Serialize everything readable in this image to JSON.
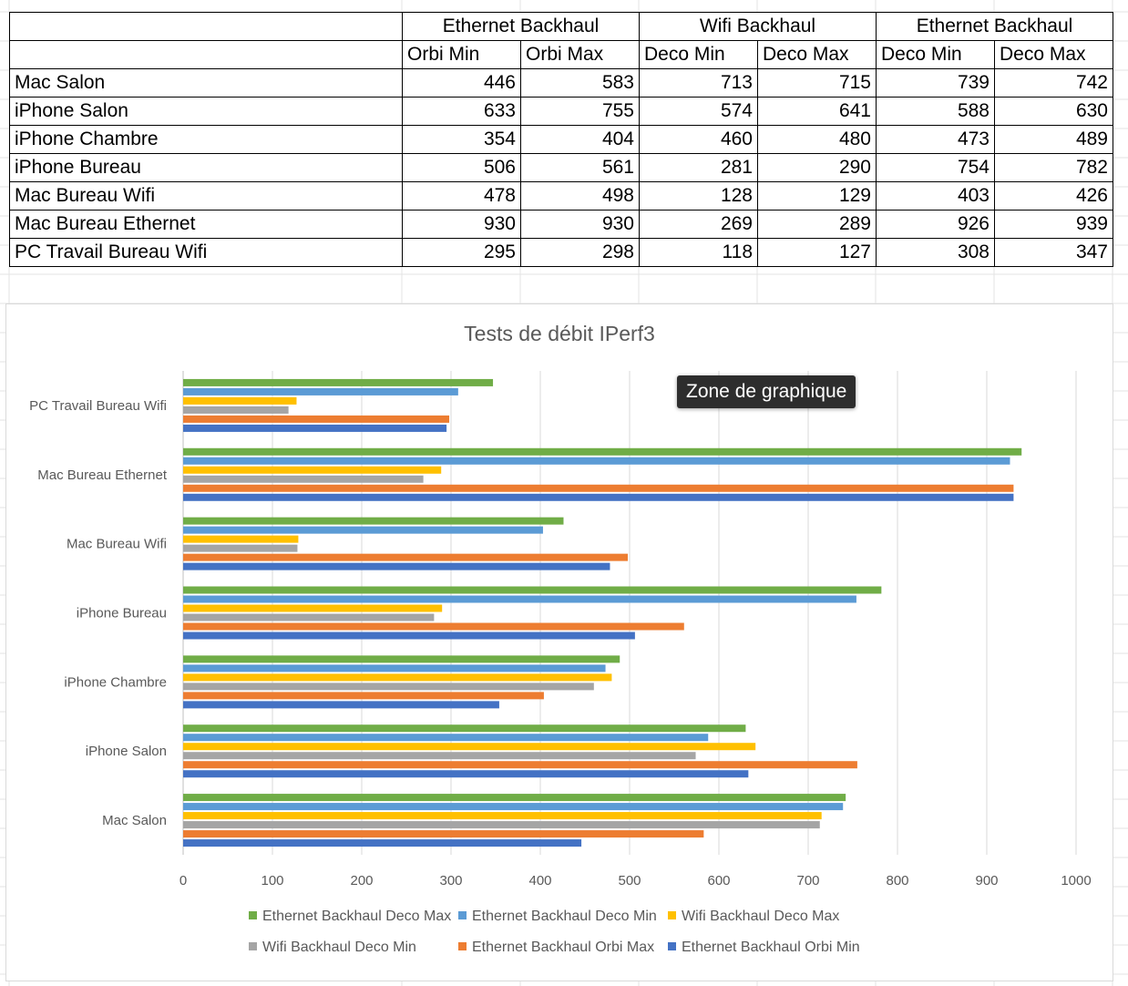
{
  "table": {
    "group_headers": [
      "Ethernet Backhaul",
      "Wifi Backhaul",
      "Ethernet Backhaul"
    ],
    "column_headers": [
      "Orbi Min",
      "Orbi Max",
      "Deco Min",
      "Deco Max",
      "Deco Min",
      "Deco Max"
    ],
    "rows": [
      {
        "label": "Mac Salon",
        "values": [
          "446",
          "583",
          "713",
          "715",
          "739",
          "742"
        ]
      },
      {
        "label": "iPhone Salon",
        "values": [
          "633",
          "755",
          "574",
          "641",
          "588",
          "630"
        ]
      },
      {
        "label": "iPhone Chambre",
        "values": [
          "354",
          "404",
          "460",
          "480",
          "473",
          "489"
        ]
      },
      {
        "label": "iPhone Bureau",
        "values": [
          "506",
          "561",
          "281",
          "290",
          "754",
          "782"
        ]
      },
      {
        "label": "Mac Bureau Wifi",
        "values": [
          "478",
          "498",
          "128",
          "129",
          "403",
          "426"
        ]
      },
      {
        "label": "Mac Bureau Ethernet",
        "values": [
          "930",
          "930",
          "269",
          "289",
          "926",
          "939"
        ]
      },
      {
        "label": "PC Travail Bureau Wifi",
        "values": [
          "295",
          "298",
          "118",
          "127",
          "308",
          "347"
        ]
      }
    ]
  },
  "tooltip": "Zone de graphique",
  "chart_data": {
    "type": "bar",
    "orientation": "horizontal",
    "title": "Tests de débit IPerf3",
    "xlabel": "",
    "ylabel": "",
    "xlim": [
      0,
      1000
    ],
    "x_ticks": [
      "0",
      "100",
      "200",
      "300",
      "400",
      "500",
      "600",
      "700",
      "800",
      "900",
      "1000"
    ],
    "grid": true,
    "legend_position": "bottom",
    "categories": [
      "Mac Salon",
      "iPhone Salon",
      "iPhone Chambre",
      "iPhone Bureau",
      "Mac Bureau Wifi",
      "Mac Bureau Ethernet",
      "PC Travail Bureau Wifi"
    ],
    "series": [
      {
        "name": "Ethernet Backhaul Orbi Min",
        "color": "#4472c4",
        "values": [
          446,
          633,
          354,
          506,
          478,
          930,
          295
        ]
      },
      {
        "name": "Ethernet Backhaul Orbi Max",
        "color": "#ed7d31",
        "values": [
          583,
          755,
          404,
          561,
          498,
          930,
          298
        ]
      },
      {
        "name": "Wifi Backhaul Deco Min",
        "color": "#a5a5a5",
        "values": [
          713,
          574,
          460,
          281,
          128,
          269,
          118
        ]
      },
      {
        "name": "Wifi Backhaul Deco Max",
        "color": "#ffc000",
        "values": [
          715,
          641,
          480,
          290,
          129,
          289,
          127
        ]
      },
      {
        "name": "Ethernet Backhaul Deco Min",
        "color": "#5b9bd5",
        "values": [
          739,
          588,
          473,
          754,
          403,
          926,
          308
        ]
      },
      {
        "name": "Ethernet Backhaul Deco Max",
        "color": "#70ad47",
        "values": [
          742,
          630,
          489,
          782,
          426,
          939,
          347
        ]
      }
    ],
    "legend_rows": [
      [
        "Ethernet Backhaul Deco Max",
        "Ethernet Backhaul Deco Min",
        "Wifi Backhaul Deco Max"
      ],
      [
        "Wifi Backhaul Deco Min",
        "Ethernet Backhaul Orbi Max",
        "Ethernet Backhaul Orbi Min"
      ]
    ]
  }
}
